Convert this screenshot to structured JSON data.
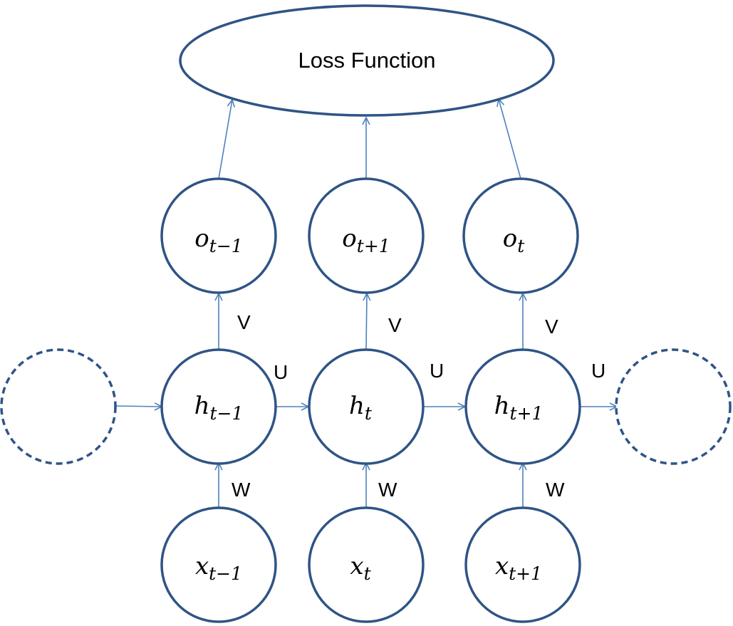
{
  "colors": {
    "node_stroke": "#2f5485",
    "edge": "#4f81bd",
    "text": "#000000"
  },
  "loss": {
    "label": "Loss Function"
  },
  "outputs": [
    {
      "var": "o",
      "sub": "t−1"
    },
    {
      "var": "o",
      "sub": "t+1"
    },
    {
      "var": "o",
      "sub": "t"
    }
  ],
  "hidden": [
    {
      "var": "h",
      "sub": "t−1"
    },
    {
      "var": "h",
      "sub": "t"
    },
    {
      "var": "h",
      "sub": "t+1"
    }
  ],
  "inputs": [
    {
      "var": "x",
      "sub": "t−1"
    },
    {
      "var": "x",
      "sub": "t"
    },
    {
      "var": "x",
      "sub": "t+1"
    }
  ],
  "weights": {
    "V": [
      "V",
      "V",
      "V"
    ],
    "U": [
      "U",
      "U",
      "U"
    ],
    "W": [
      "W",
      "W",
      "W"
    ]
  }
}
